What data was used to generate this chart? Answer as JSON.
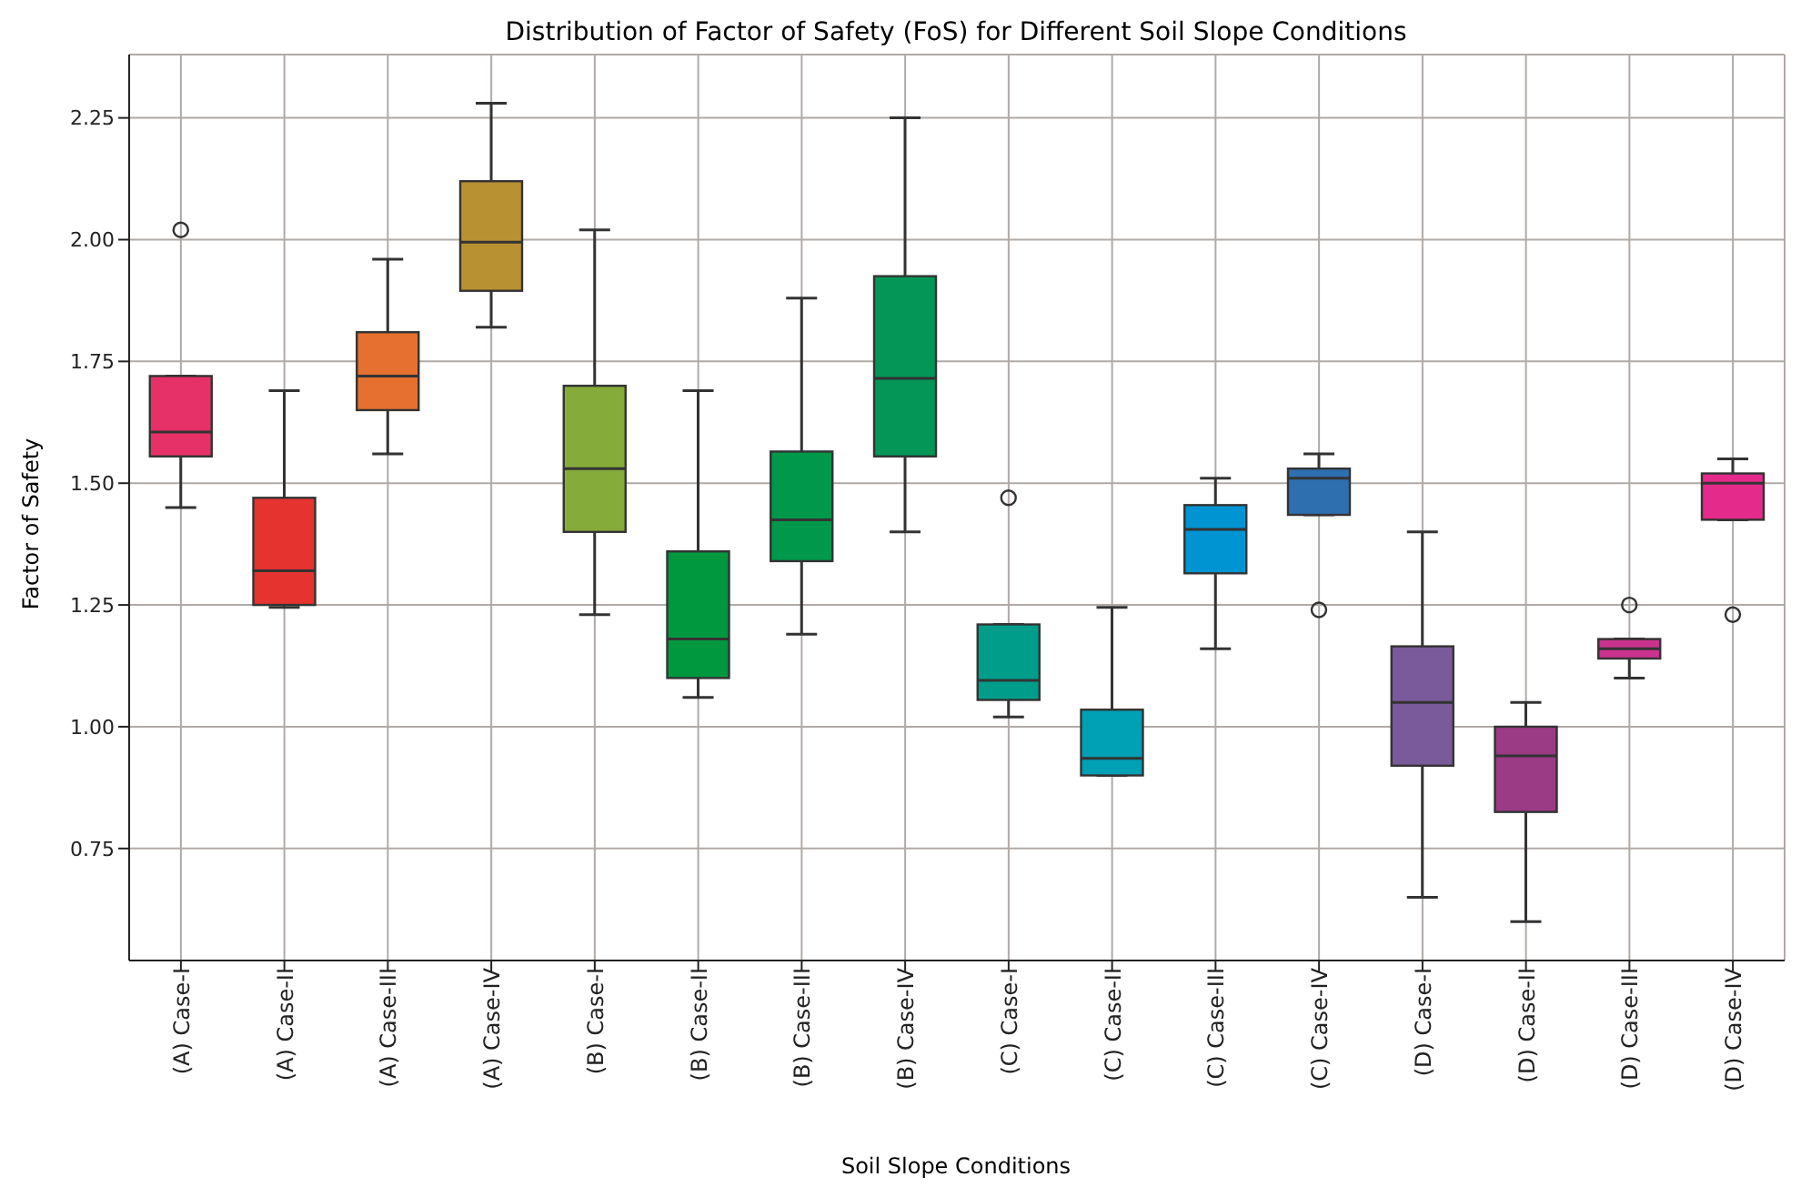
{
  "chart_data": {
    "type": "box",
    "title": "Distribution of Factor of Safety (FoS) for Different Soil Slope Conditions",
    "xlabel": "Soil Slope Conditions",
    "ylabel": "Factor of Safety",
    "categories": [
      "(A) Case-I",
      "(A) Case-II",
      "(A) Case-III",
      "(A) Case-IV",
      "(B) Case-I",
      "(B) Case-II",
      "(B) Case-III",
      "(B) Case-IV",
      "(C) Case-I",
      "(C) Case-II",
      "(C) Case-III",
      "(C) Case-IV",
      "(D) Case-I",
      "(D) Case-II",
      "(D) Case-III",
      "(D) Case-IV"
    ],
    "boxes": [
      {
        "low": 1.45,
        "q1": 1.555,
        "median": 1.605,
        "q3": 1.72,
        "high": 1.72,
        "outliers": [
          2.02
        ]
      },
      {
        "low": 1.245,
        "q1": 1.25,
        "median": 1.32,
        "q3": 1.47,
        "high": 1.69
      },
      {
        "low": 1.56,
        "q1": 1.65,
        "median": 1.72,
        "q3": 1.81,
        "high": 1.96
      },
      {
        "low": 1.82,
        "q1": 1.895,
        "median": 1.995,
        "q3": 2.12,
        "high": 2.28
      },
      {
        "low": 1.23,
        "q1": 1.4,
        "median": 1.53,
        "q3": 1.7,
        "high": 2.02
      },
      {
        "low": 1.06,
        "q1": 1.1,
        "median": 1.18,
        "q3": 1.36,
        "high": 1.69
      },
      {
        "low": 1.19,
        "q1": 1.34,
        "median": 1.425,
        "q3": 1.565,
        "high": 1.88
      },
      {
        "low": 1.4,
        "q1": 1.555,
        "median": 1.715,
        "q3": 1.925,
        "high": 2.25
      },
      {
        "low": 1.02,
        "q1": 1.055,
        "median": 1.095,
        "q3": 1.21,
        "high": 1.21,
        "outliers": [
          1.47
        ]
      },
      {
        "low": 0.9,
        "q1": 0.9,
        "median": 0.935,
        "q3": 1.035,
        "high": 1.245
      },
      {
        "low": 1.16,
        "q1": 1.315,
        "median": 1.405,
        "q3": 1.455,
        "high": 1.51
      },
      {
        "low": 1.435,
        "q1": 1.435,
        "median": 1.51,
        "q3": 1.53,
        "high": 1.56,
        "outliers": [
          1.24
        ]
      },
      {
        "low": 0.65,
        "q1": 0.92,
        "median": 1.05,
        "q3": 1.165,
        "high": 1.4
      },
      {
        "low": 0.6,
        "q1": 0.825,
        "median": 0.94,
        "q3": 1.0,
        "high": 1.05
      },
      {
        "low": 1.1,
        "q1": 1.14,
        "median": 1.16,
        "q3": 1.18,
        "high": 1.18,
        "outliers": [
          1.25
        ]
      },
      {
        "low": 1.425,
        "q1": 1.425,
        "median": 1.5,
        "q3": 1.52,
        "high": 1.55,
        "outliers": [
          1.23
        ]
      }
    ],
    "colors": [
      "#e63068",
      "#e5332f",
      "#e5702f",
      "#b89132",
      "#85ab3a",
      "#00983f",
      "#00984a",
      "#039657",
      "#009e8a",
      "#00a0b5",
      "#0095d2",
      "#2e6fb0",
      "#7a5a9a",
      "#9b3a85",
      "#c9338e",
      "#e42a8a"
    ],
    "ylim": [
      0.52,
      2.38
    ],
    "yticks": [
      0.75,
      {
        "value": 1,
        "label": "1.00"
      },
      1.25,
      {
        "value": 1.5,
        "label": "1.50"
      },
      1.75,
      {
        "value": 2,
        "label": "2.00"
      },
      2.25
    ],
    "grid": true
  }
}
